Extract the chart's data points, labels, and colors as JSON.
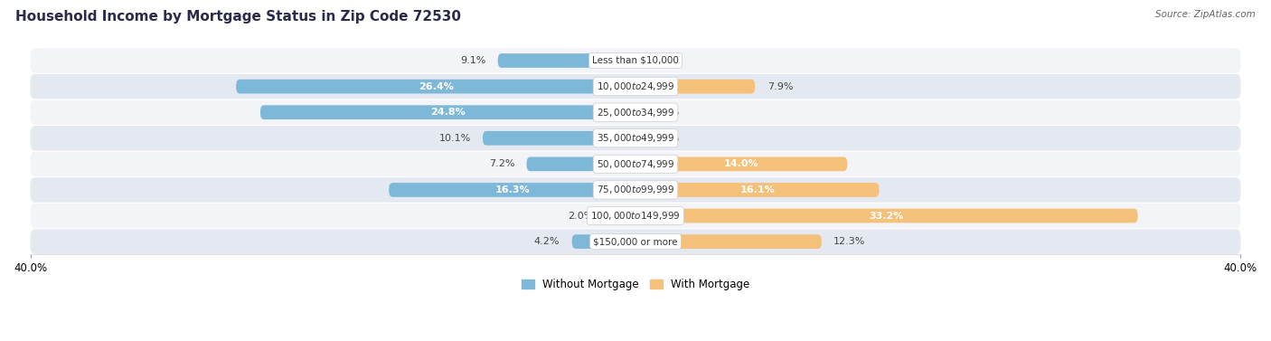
{
  "title": "Household Income by Mortgage Status in Zip Code 72530",
  "source": "Source: ZipAtlas.com",
  "categories": [
    "Less than $10,000",
    "$10,000 to $24,999",
    "$25,000 to $34,999",
    "$35,000 to $49,999",
    "$50,000 to $74,999",
    "$75,000 to $99,999",
    "$100,000 to $149,999",
    "$150,000 or more"
  ],
  "without_mortgage": [
    9.1,
    26.4,
    24.8,
    10.1,
    7.2,
    16.3,
    2.0,
    4.2
  ],
  "with_mortgage": [
    0.0,
    7.9,
    0.0,
    0.0,
    14.0,
    16.1,
    33.2,
    12.3
  ],
  "color_without": "#7eb8d9",
  "color_with": "#f5c07a",
  "axis_limit": 40.0,
  "row_bg_even": "#f2f4f8",
  "row_bg_odd": "#e4e8f0",
  "fig_bg": "#ffffff",
  "title_fontsize": 11,
  "label_fontsize": 8,
  "cat_fontsize": 7.5,
  "bar_height": 0.55,
  "legend_fontsize": 8.5,
  "inside_label_threshold": 14
}
